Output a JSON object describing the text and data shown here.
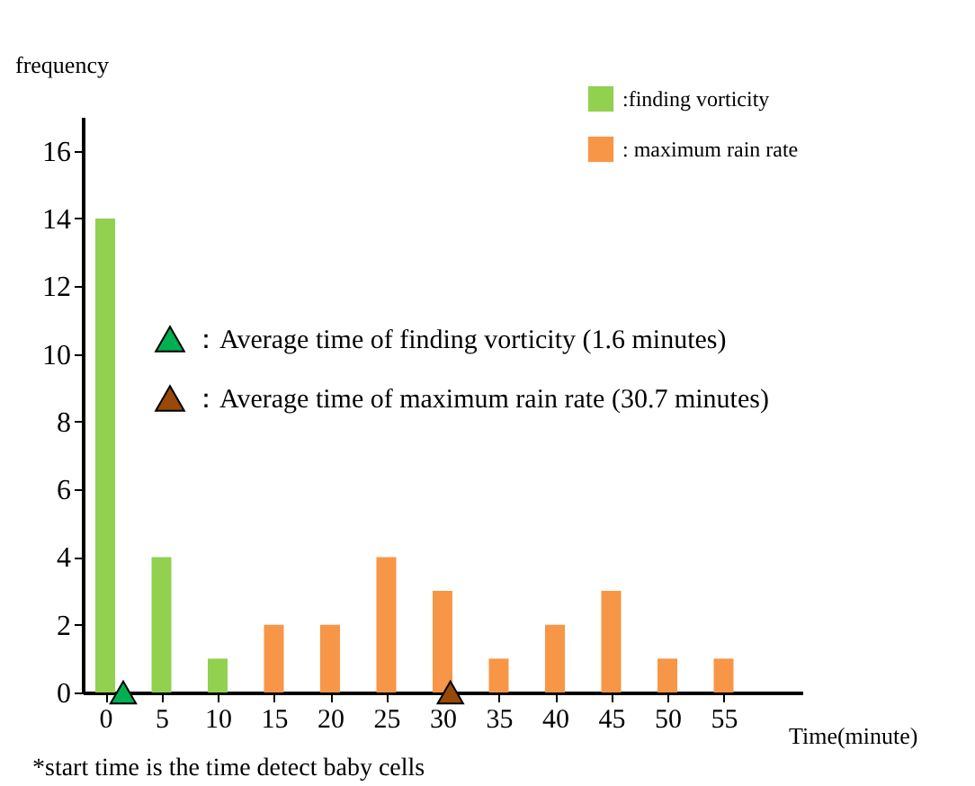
{
  "chart_data": {
    "type": "bar",
    "ylabel": "frequency",
    "xlabel": "Time(minute)",
    "annotations": [
      "*start time is the time detect baby cells"
    ],
    "xlim": [
      -2,
      62
    ],
    "xticks": [
      0,
      5,
      10,
      15,
      20,
      25,
      30,
      35,
      40,
      45,
      50,
      55
    ],
    "ylim": [
      0,
      17
    ],
    "yticks": [
      0,
      2,
      4,
      6,
      8,
      10,
      12,
      14,
      16
    ],
    "legend": "top right",
    "series": [
      {
        "name": ":finding vorticity",
        "color": "#92d050",
        "x": [
          0,
          5,
          10
        ],
        "values": [
          14,
          4,
          1
        ]
      },
      {
        "name": ": maximum rain rate",
        "color": "#f79646",
        "x": [
          15,
          20,
          25,
          30,
          35,
          40,
          45,
          50,
          55
        ],
        "values": [
          2,
          2,
          4,
          3,
          1,
          2,
          3,
          1,
          1
        ]
      },
      {
        "type": "scatter",
        "marker": "triangle",
        "name": "：Average time of finding vorticity (1.6 minutes)",
        "color": "#00b050",
        "x": [
          1.6
        ],
        "values": [
          0
        ]
      },
      {
        "type": "scatter",
        "marker": "triangle",
        "name": "：Average time of maximum rain rate (30.7 minutes)",
        "color": "#984807",
        "x": [
          30.7
        ],
        "values": [
          0
        ]
      }
    ]
  }
}
